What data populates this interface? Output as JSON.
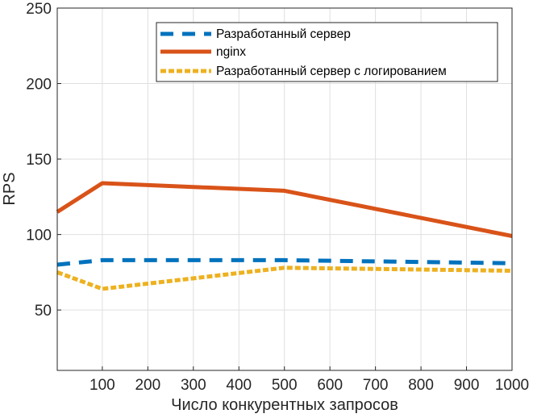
{
  "chart_data": {
    "type": "line",
    "title": "",
    "xlabel": "Число конкурентных запросов",
    "ylabel": "RPS",
    "xlim": [
      1,
      1000
    ],
    "ylim": [
      10,
      250
    ],
    "xticks": [
      100,
      200,
      300,
      400,
      500,
      600,
      700,
      800,
      900,
      1000
    ],
    "yticks": [
      50,
      100,
      150,
      200,
      250
    ],
    "grid": true,
    "legend_position": "top-right",
    "series": [
      {
        "name": "Разработанный сервер",
        "color": "#0072BD",
        "style": "dashed",
        "x": [
          1,
          100,
          500,
          1000
        ],
        "y": [
          80,
          83,
          83,
          81
        ]
      },
      {
        "name": "nginx",
        "color": "#D95319",
        "style": "solid",
        "x": [
          1,
          100,
          500,
          1000
        ],
        "y": [
          115,
          134,
          129,
          99
        ]
      },
      {
        "name": "Разработанный сервер с логированием",
        "color": "#EDB120",
        "style": "dotted",
        "x": [
          1,
          100,
          500,
          1000
        ],
        "y": [
          75,
          64,
          78,
          76
        ]
      }
    ]
  }
}
